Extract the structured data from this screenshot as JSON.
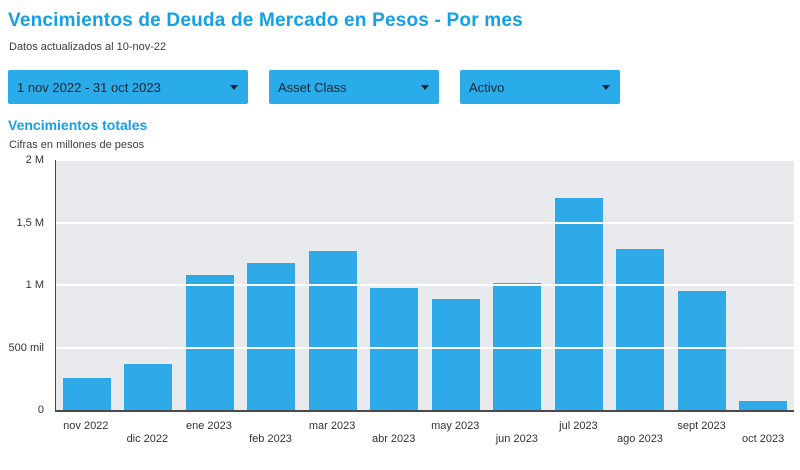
{
  "header": {
    "title": "Vencimientos de Deuda de Mercado en Pesos - Por mes",
    "subtitle": "Datos actualizados al 10-nov-22"
  },
  "filters": [
    {
      "label": "1 nov 2022 - 31 oct 2023"
    },
    {
      "label": "Asset Class"
    },
    {
      "label": "Activo"
    }
  ],
  "section": {
    "title": "Vencimientos totales",
    "subtitle": "Cifras en millones de pesos"
  },
  "colors": {
    "accent_blue": "#14A0E6",
    "control_blue": "#29ACE9",
    "bar_blue": "#2EAAE8",
    "plot_background": "#E9EAEE"
  },
  "chart_data": {
    "type": "bar",
    "title": "Vencimientos totales",
    "subtitle": "Cifras en millones de pesos",
    "categories": [
      "nov 2022",
      "dic 2022",
      "ene 2023",
      "feb 2023",
      "mar 2023",
      "abr 2023",
      "may 2023",
      "jun 2023",
      "jul 2023",
      "ago 2023",
      "sept 2023",
      "oct 2023"
    ],
    "values_millions": [
      0.26,
      0.37,
      1.08,
      1.18,
      1.27,
      0.98,
      0.89,
      1.02,
      1.7,
      1.29,
      0.95,
      0.07
    ],
    "xlabel": "",
    "ylabel": "",
    "ylim_millions": [
      0,
      2
    ],
    "y_tick_values_millions": [
      0,
      0.5,
      1,
      1.5,
      2
    ],
    "y_tick_labels": [
      "0",
      "500 mil",
      "1 M",
      "1,5 M",
      "2 M"
    ],
    "grid": true,
    "legend": false
  }
}
